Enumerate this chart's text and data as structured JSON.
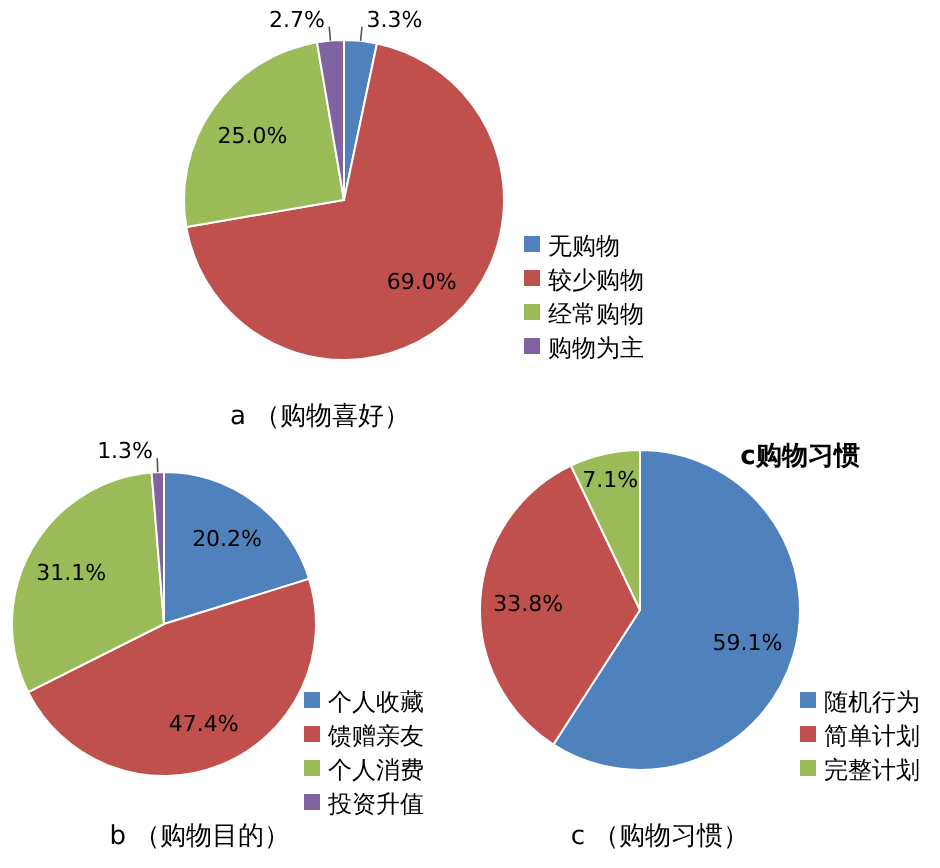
{
  "chart_data": [
    {
      "type": "pie",
      "title": "a （购物喜好）",
      "categories": [
        "无购物",
        "较少购物",
        "经常购物",
        "购物为主"
      ],
      "values": [
        3.3,
        69.0,
        25.0,
        2.7
      ],
      "value_labels": [
        "3.3%",
        "69.0%",
        "25.0%",
        "2.7%"
      ],
      "colors": [
        "#4f81bd",
        "#c0504d",
        "#9bbb59",
        "#8064a2"
      ],
      "legend": "right"
    },
    {
      "type": "pie",
      "title": "b （购物目的）",
      "categories": [
        "个人收藏",
        "馈赠亲友",
        "个人消费",
        "投资升值"
      ],
      "values": [
        20.2,
        47.4,
        31.1,
        1.3
      ],
      "value_labels": [
        "20.2%",
        "47.4%",
        "31.1%",
        "1.3%"
      ],
      "colors": [
        "#4f81bd",
        "#c0504d",
        "#9bbb59",
        "#8064a2"
      ],
      "legend": "right"
    },
    {
      "type": "pie",
      "title": "c购物习惯",
      "annotations": [
        "c （购物习惯）"
      ],
      "categories": [
        "随机行为",
        "简单计划",
        "完整计划"
      ],
      "values": [
        59.1,
        33.8,
        7.1
      ],
      "value_labels": [
        "59.1%",
        "33.8%",
        "7.1%"
      ],
      "colors": [
        "#4f81bd",
        "#c0504d",
        "#9bbb59"
      ],
      "legend": "right"
    }
  ]
}
